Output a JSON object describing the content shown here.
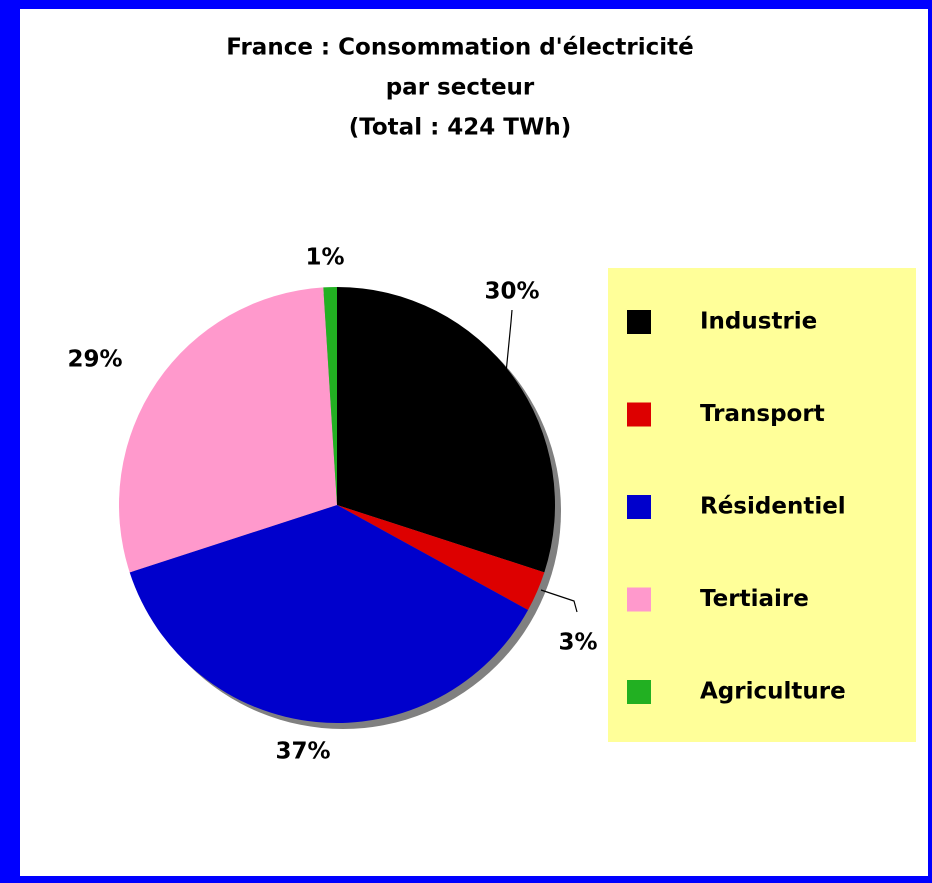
{
  "chart_data": {
    "type": "pie",
    "title": [
      "France : Consommation d'électricité",
      "par secteur",
      "(Total : 424 TWh)"
    ],
    "categories": [
      "Industrie",
      "Transport",
      "Résidentiel",
      "Tertiaire",
      "Agriculture"
    ],
    "values": [
      30,
      3,
      37,
      29,
      1
    ],
    "value_labels": [
      "30%",
      "3%",
      "37%",
      "29%",
      "1%"
    ],
    "colors": [
      "#000000",
      "#dd0000",
      "#0000cc",
      "#ff99cc",
      "#22b022"
    ],
    "legend": "right"
  }
}
